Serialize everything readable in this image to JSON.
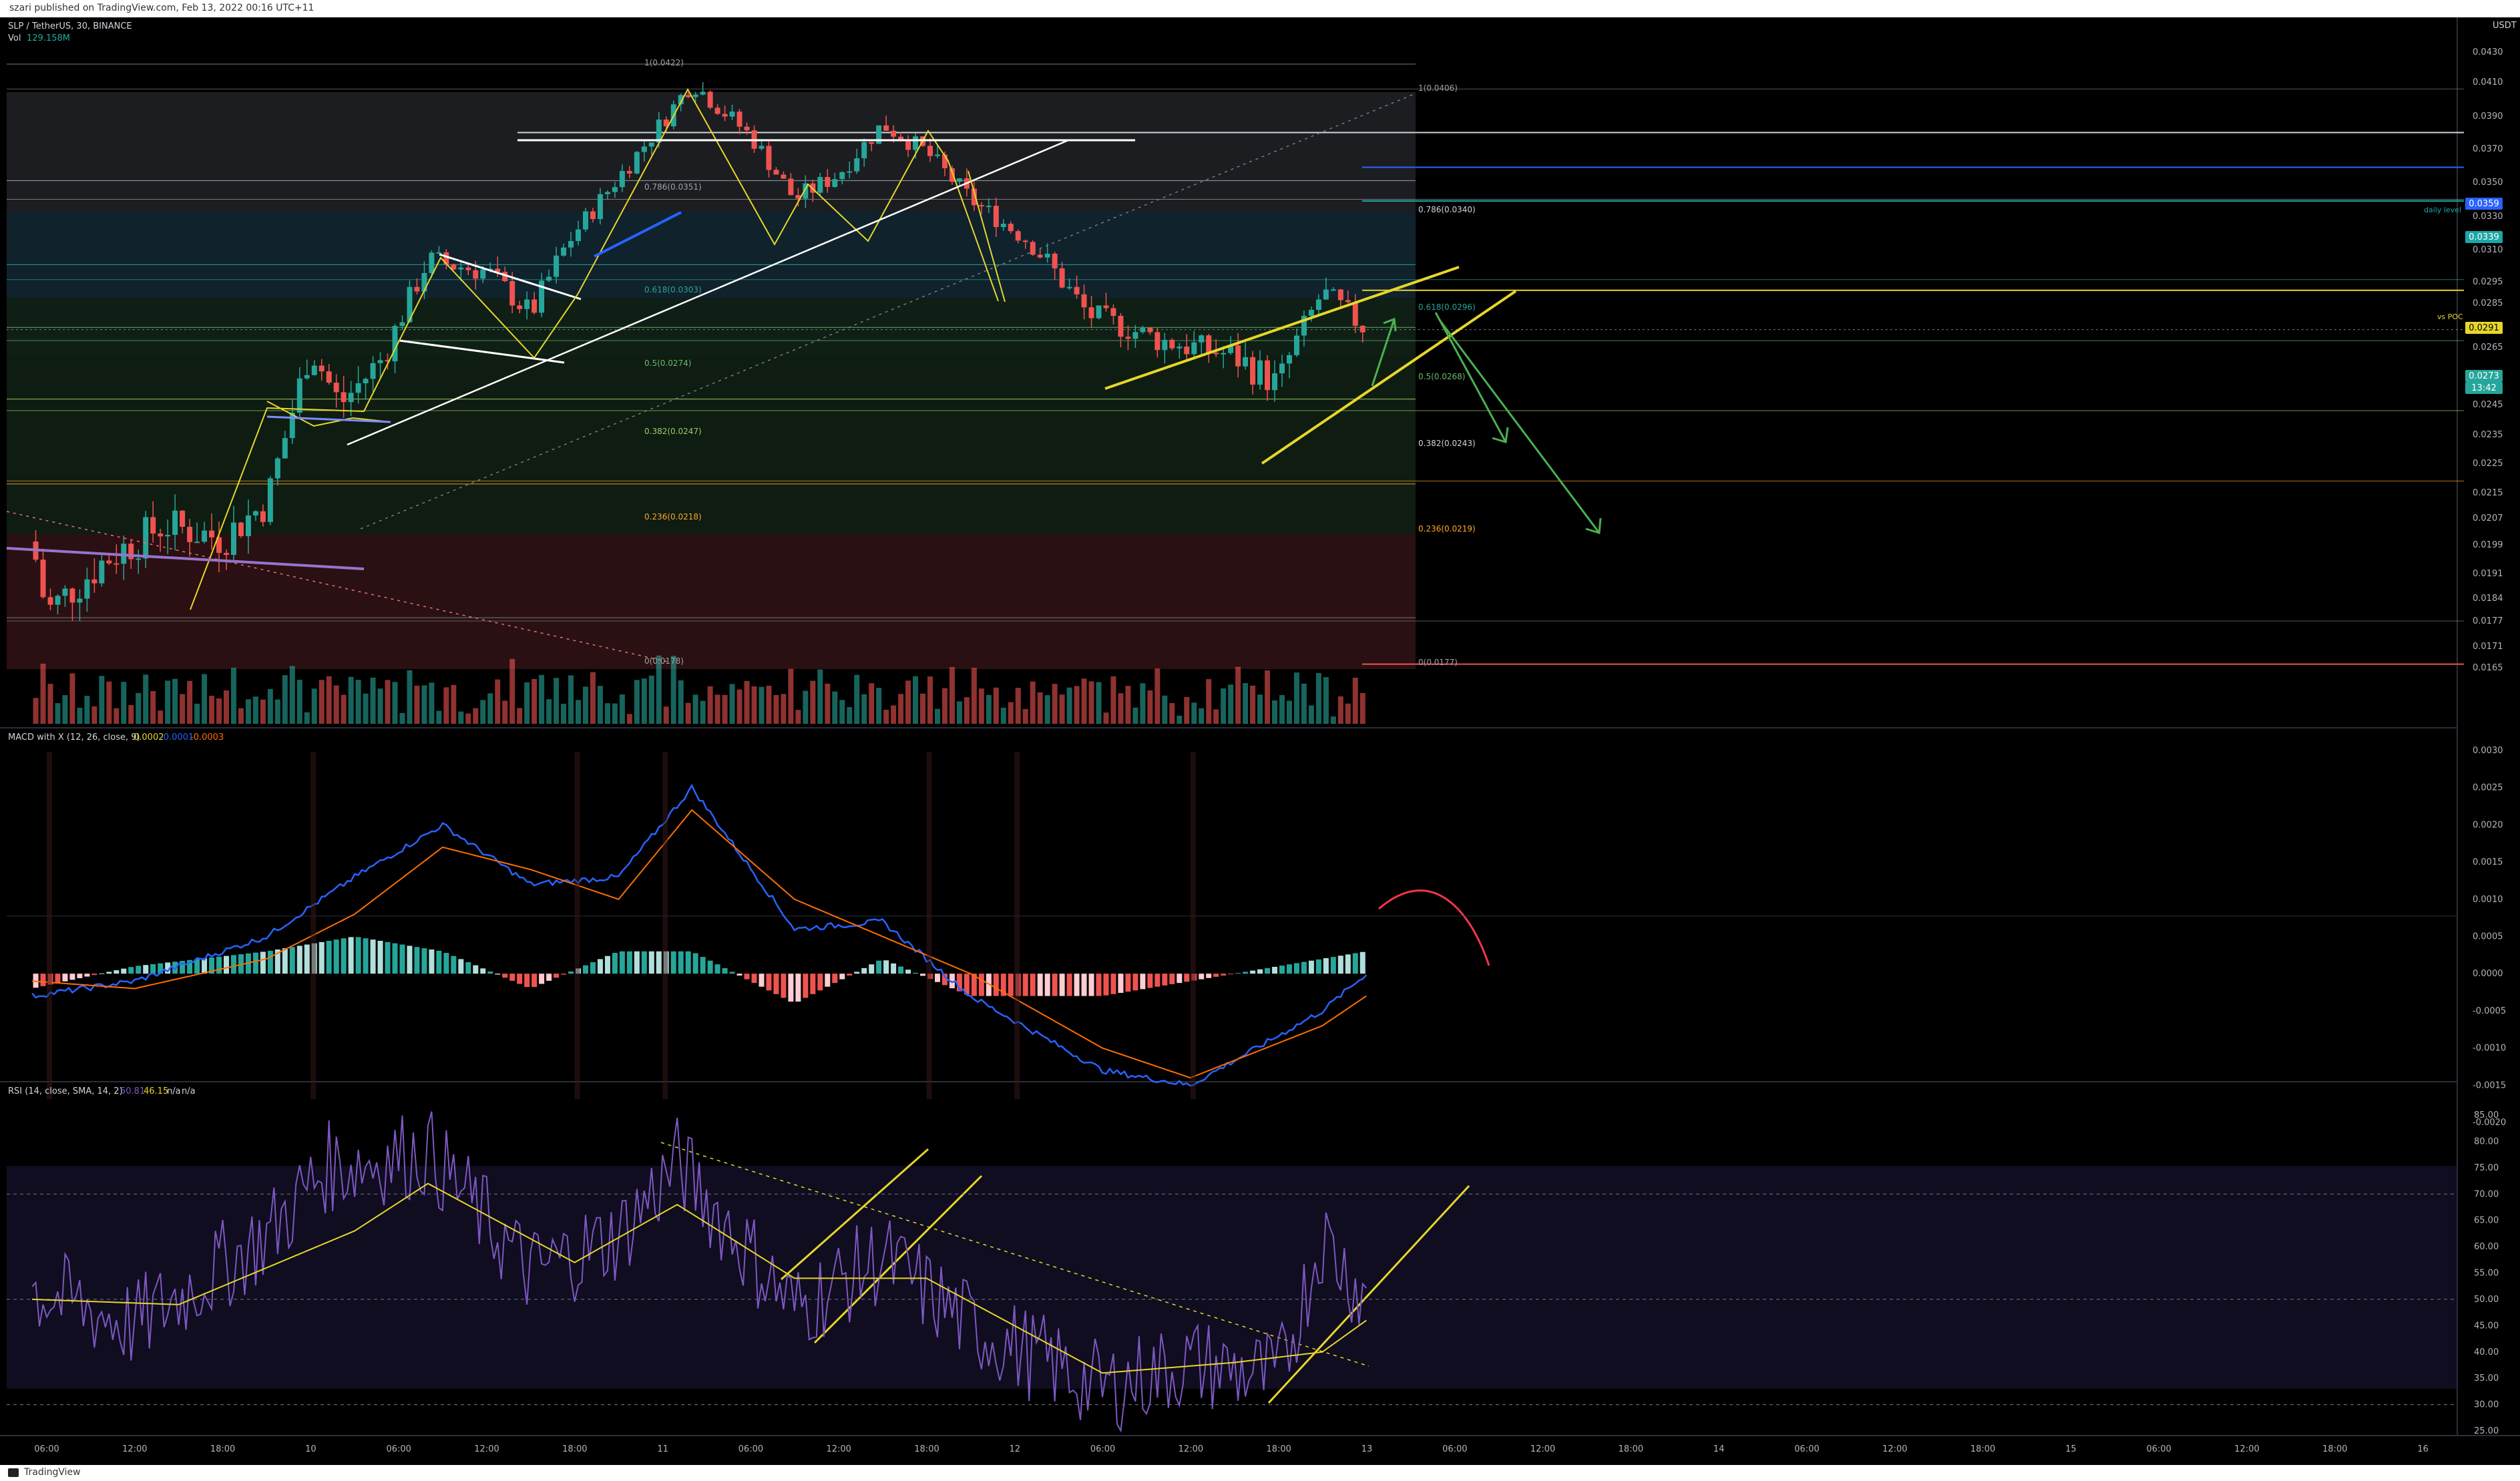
{
  "header": {
    "published_text": "szari published on TradingView.com, Feb 13, 2022 00:16 UTC+11"
  },
  "legend": {
    "symbol": "SLP / TetherUS, 30, BINANCE",
    "vol_label": "Vol",
    "vol_value": "129.158M",
    "macd_label": "MACD with X (12, 26, close, 9)",
    "macd_v1": "0.0002",
    "macd_v2": "-0.0001",
    "macd_v3": "-0.0003",
    "rsi_label": "RSI (14, close, SMA, 14, 2)",
    "rsi_v1": "50.81",
    "rsi_v2": "46.15",
    "rsi_v3": "n/a",
    "rsi_v4": "n/a"
  },
  "price_axis": {
    "unit": "USDT",
    "ticks": [
      "0.0430",
      "0.0410",
      "0.0390",
      "0.0370",
      "0.0350",
      "0.0330",
      "0.0310",
      "0.0295",
      "0.0285",
      "0.0265",
      "0.0255",
      "0.0245",
      "0.0235",
      "0.0225",
      "0.0215",
      "0.0207",
      "0.0199",
      "0.0191",
      "0.0184",
      "0.0177",
      "0.0171",
      "0.0165"
    ],
    "badges": [
      {
        "text": "0.0359",
        "color": "#2962ff"
      },
      {
        "text": "0.0339",
        "color": "#1ba7a7"
      },
      {
        "text": "0.0291",
        "color": "#e6d62a"
      },
      {
        "text": "0.0273",
        "color": "#26a69a"
      },
      {
        "text": "13:42",
        "color": "#26a69a"
      }
    ],
    "tag_daily": "daily level",
    "tag_poc": "vs POC"
  },
  "macd_axis": {
    "ticks": [
      "0.0030",
      "0.0025",
      "0.0020",
      "0.0015",
      "0.0010",
      "0.0005",
      "0.0000",
      "-0.0005",
      "-0.0010",
      "-0.0015",
      "-0.0020"
    ]
  },
  "rsi_axis": {
    "ticks": [
      "85.00",
      "80.00",
      "75.00",
      "70.00",
      "65.00",
      "60.00",
      "55.00",
      "50.00",
      "45.00",
      "40.00",
      "35.00",
      "30.00",
      "25.00"
    ]
  },
  "time_axis": {
    "labels": [
      "06:00",
      "12:00",
      "18:00",
      "10",
      "06:00",
      "12:00",
      "18:00",
      "11",
      "06:00",
      "12:00",
      "18:00",
      "12",
      "06:00",
      "12:00",
      "18:00",
      "13",
      "06:00",
      "12:00",
      "18:00",
      "14",
      "06:00",
      "12:00",
      "18:00",
      "15",
      "06:00",
      "12:00",
      "18:00",
      "16"
    ]
  },
  "fib_left": {
    "labels": [
      "1(0.0422)",
      "0.786(0.0351)",
      "0.618(0.0303)",
      "0.5(0.0274)",
      "0.382(0.0247)",
      "0.236(0.0218)",
      "0(0.0178)"
    ]
  },
  "fib_right": {
    "labels": [
      "1(0.0406)",
      "0.786(0.0340)",
      "0.618(0.0296)",
      "0.5(0.0268)",
      "0.382(0.0243)",
      "0.236(0.0219)",
      "0(0.0177)"
    ]
  },
  "footer": {
    "brand": "TradingView"
  },
  "chart_data": {
    "type": "candlestick",
    "symbol": "SLP / TetherUS",
    "interval": "30",
    "exchange": "BINANCE",
    "price_range": [
      0.016,
      0.044
    ],
    "path_keypoints": [
      {
        "time": "9 05:00",
        "price": 0.02
      },
      {
        "time": "9 06:00",
        "price": 0.018
      },
      {
        "time": "9 10:00",
        "price": 0.0195
      },
      {
        "time": "9 14:00",
        "price": 0.0205
      },
      {
        "time": "9 18:00",
        "price": 0.0201
      },
      {
        "time": "9 21:00",
        "price": 0.0212
      },
      {
        "time": "10 00:00",
        "price": 0.0265
      },
      {
        "time": "10 02:00",
        "price": 0.0245
      },
      {
        "time": "10 05:00",
        "price": 0.0262
      },
      {
        "time": "10 08:00",
        "price": 0.0305
      },
      {
        "time": "10 12:00",
        "price": 0.03
      },
      {
        "time": "10 15:00",
        "price": 0.028
      },
      {
        "time": "10 18:00",
        "price": 0.032
      },
      {
        "time": "10 23:00",
        "price": 0.0375
      },
      {
        "time": "11 02:00",
        "price": 0.041
      },
      {
        "time": "11 06:00",
        "price": 0.0378
      },
      {
        "time": "11 09:00",
        "price": 0.034
      },
      {
        "time": "11 12:00",
        "price": 0.0355
      },
      {
        "time": "11 15:00",
        "price": 0.0385
      },
      {
        "time": "11 18:00",
        "price": 0.0368
      },
      {
        "time": "11 21:00",
        "price": 0.034
      },
      {
        "time": "12 01:00",
        "price": 0.0315
      },
      {
        "time": "12 05:00",
        "price": 0.028
      },
      {
        "time": "12 10:00",
        "price": 0.0268
      },
      {
        "time": "12 15:00",
        "price": 0.0262
      },
      {
        "time": "12 18:00",
        "price": 0.0252
      },
      {
        "time": "12 21:00",
        "price": 0.029
      },
      {
        "time": "13 00:00",
        "price": 0.0273
      }
    ],
    "macd": {
      "ylim": [
        -0.0022,
        0.0031
      ],
      "macd_keypoints": [
        {
          "time": "9 05:00",
          "v": -0.0003
        },
        {
          "time": "9 12:00",
          "v": -0.0001
        },
        {
          "time": "9 21:00",
          "v": 0.0005
        },
        {
          "time": "10 03:00",
          "v": 0.0013
        },
        {
          "time": "10 09:00",
          "v": 0.002
        },
        {
          "time": "10 15:00",
          "v": 0.0012
        },
        {
          "time": "10 21:00",
          "v": 0.0013
        },
        {
          "time": "11 02:00",
          "v": 0.0025
        },
        {
          "time": "11 09:00",
          "v": 0.0006
        },
        {
          "time": "11 15:00",
          "v": 0.0007
        },
        {
          "time": "11 21:00",
          "v": -0.0003
        },
        {
          "time": "12 06:00",
          "v": -0.0013
        },
        {
          "time": "12 12:00",
          "v": -0.0015
        },
        {
          "time": "12 21:00",
          "v": -0.0005
        },
        {
          "time": "13 00:00",
          "v": 0.0
        }
      ],
      "signal_keypoints": [
        {
          "time": "9 05:00",
          "v": -0.0001
        },
        {
          "time": "9 12:00",
          "v": -0.0002
        },
        {
          "time": "9 21:00",
          "v": 0.0002
        },
        {
          "time": "10 03:00",
          "v": 0.0008
        },
        {
          "time": "10 09:00",
          "v": 0.0017
        },
        {
          "time": "10 15:00",
          "v": 0.0014
        },
        {
          "time": "10 21:00",
          "v": 0.001
        },
        {
          "time": "11 02:00",
          "v": 0.0022
        },
        {
          "time": "11 09:00",
          "v": 0.001
        },
        {
          "time": "11 15:00",
          "v": 0.0005
        },
        {
          "time": "11 21:00",
          "v": 0.0
        },
        {
          "time": "12 06:00",
          "v": -0.001
        },
        {
          "time": "12 12:00",
          "v": -0.0014
        },
        {
          "time": "12 21:00",
          "v": -0.0007
        },
        {
          "time": "13 00:00",
          "v": -0.0003
        }
      ]
    },
    "rsi": {
      "ylim": [
        25,
        85
      ],
      "bands": [
        30,
        50,
        70
      ],
      "rsi_keypoints": [
        {
          "time": "9 05:00",
          "v": 52
        },
        {
          "time": "9 12:00",
          "v": 45
        },
        {
          "time": "9 21:00",
          "v": 62
        },
        {
          "time": "10 01:00",
          "v": 75
        },
        {
          "time": "10 08:00",
          "v": 78
        },
        {
          "time": "10 15:00",
          "v": 55
        },
        {
          "time": "10 21:00",
          "v": 62
        },
        {
          "time": "11 01:00",
          "v": 76
        },
        {
          "time": "11 09:00",
          "v": 48
        },
        {
          "time": "11 15:00",
          "v": 58
        },
        {
          "time": "11 21:00",
          "v": 45
        },
        {
          "time": "12 06:00",
          "v": 33
        },
        {
          "time": "12 12:00",
          "v": 38
        },
        {
          "time": "12 18:00",
          "v": 35
        },
        {
          "time": "12 21:00",
          "v": 62
        },
        {
          "time": "13 00:00",
          "v": 50
        }
      ],
      "sma_keypoints": [
        {
          "time": "9 05:00",
          "v": 50
        },
        {
          "time": "9 15:00",
          "v": 49
        },
        {
          "time": "10 03:00",
          "v": 63
        },
        {
          "time": "10 08:00",
          "v": 72
        },
        {
          "time": "10 18:00",
          "v": 57
        },
        {
          "time": "11 01:00",
          "v": 68
        },
        {
          "time": "11 09:00",
          "v": 54
        },
        {
          "time": "11 18:00",
          "v": 54
        },
        {
          "time": "12 06:00",
          "v": 36
        },
        {
          "time": "12 15:00",
          "v": 38
        },
        {
          "time": "12 21:00",
          "v": 40
        },
        {
          "time": "13 00:00",
          "v": 46
        }
      ]
    },
    "horizontal_levels": [
      0.038,
      0.0359,
      0.0339,
      0.0291,
      0.0166
    ],
    "colors": {
      "up": "#26a69a",
      "down": "#ef5350",
      "macd": "#2962ff",
      "signal": "#ff6d00",
      "rsi": "#7e57c2",
      "rsi_sma": "#e6d62a",
      "yellow": "#e6d62a",
      "arrow": "#4caf50"
    }
  }
}
